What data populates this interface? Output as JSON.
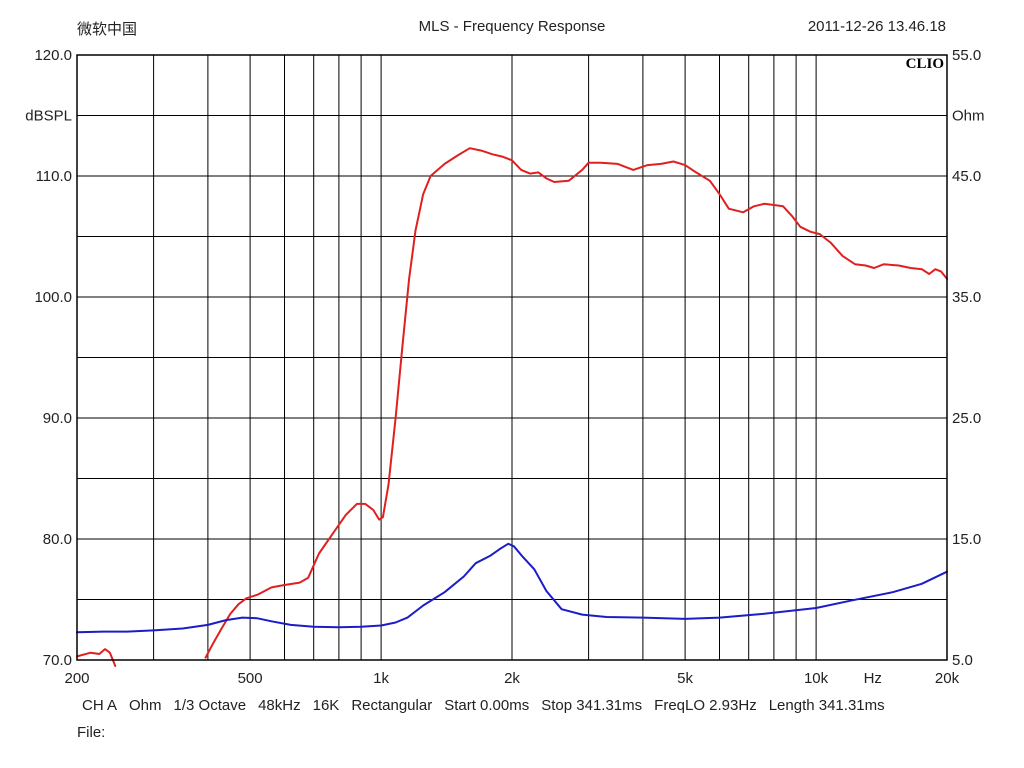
{
  "header": {
    "left": "微软中国",
    "title": "MLS - Frequency Response",
    "right": "2011-12-26 13.46.18"
  },
  "brand": "CLIO",
  "footer": {
    "items": [
      "CH A",
      "Ohm",
      "1/3 Octave",
      "48kHz",
      "16K",
      "Rectangular",
      "Start 0.00ms",
      "Stop 341.31ms",
      "FreqLO 2.93Hz",
      "Length 341.31ms"
    ],
    "file_label": "File:"
  },
  "chart_data": {
    "type": "line",
    "xscale": "log",
    "xlim": [
      200,
      20000
    ],
    "ylim": [
      70,
      120
    ],
    "y2lim": [
      5,
      55
    ],
    "ylabel": "dBSPL",
    "y2label": "Ohm",
    "xunit": "Hz",
    "grid": true,
    "x_tick_labels": [
      {
        "value": 200,
        "label": "200"
      },
      {
        "value": 500,
        "label": "500"
      },
      {
        "value": 1000,
        "label": "1k"
      },
      {
        "value": 2000,
        "label": "2k"
      },
      {
        "value": 5000,
        "label": "5k"
      },
      {
        "value": 10000,
        "label": "10k"
      },
      {
        "value": 20000,
        "label": "20k"
      }
    ],
    "y_tick_labels": [
      "120.0",
      "110.0",
      "100.0",
      "90.0",
      "80.0",
      "70.0"
    ],
    "y2_tick_labels": [
      "55.0",
      "45.0",
      "35.0",
      "25.0",
      "15.0",
      "5.0"
    ],
    "series": [
      {
        "color": "#e02020",
        "axis": "left",
        "segments": [
          [
            [
              200,
              70.3
            ],
            [
              215,
              70.6
            ],
            [
              225,
              70.5
            ],
            [
              232,
              70.9
            ],
            [
              238,
              70.6
            ],
            [
              245,
              69.5
            ]
          ],
          [
            [
              395,
              70.2
            ],
            [
              410,
              71.3
            ],
            [
              430,
              72.6
            ],
            [
              450,
              73.8
            ],
            [
              470,
              74.6
            ],
            [
              490,
              75.1
            ],
            [
              520,
              75.4
            ],
            [
              560,
              76.0
            ],
            [
              600,
              76.2
            ],
            [
              650,
              76.4
            ],
            [
              680,
              76.8
            ],
            [
              720,
              78.8
            ],
            [
              780,
              80.6
            ],
            [
              830,
              82.0
            ],
            [
              880,
              82.9
            ],
            [
              920,
              82.9
            ],
            [
              960,
              82.4
            ],
            [
              990,
              81.6
            ],
            [
              1010,
              81.8
            ],
            [
              1040,
              84.5
            ],
            [
              1080,
              90.0
            ],
            [
              1120,
              96.0
            ],
            [
              1160,
              101.5
            ],
            [
              1200,
              105.5
            ],
            [
              1250,
              108.5
            ],
            [
              1300,
              110.0
            ],
            [
              1400,
              111.0
            ],
            [
              1500,
              111.7
            ],
            [
              1600,
              112.3
            ],
            [
              1700,
              112.1
            ],
            [
              1800,
              111.8
            ],
            [
              1900,
              111.6
            ],
            [
              2000,
              111.3
            ],
            [
              2100,
              110.5
            ],
            [
              2200,
              110.2
            ],
            [
              2300,
              110.3
            ],
            [
              2400,
              109.8
            ],
            [
              2500,
              109.5
            ],
            [
              2700,
              109.6
            ],
            [
              2900,
              110.5
            ],
            [
              3000,
              111.1
            ],
            [
              3200,
              111.1
            ],
            [
              3500,
              111.0
            ],
            [
              3800,
              110.5
            ],
            [
              4100,
              110.9
            ],
            [
              4400,
              111.0
            ],
            [
              4700,
              111.2
            ],
            [
              5000,
              110.9
            ],
            [
              5300,
              110.3
            ],
            [
              5700,
              109.6
            ],
            [
              6000,
              108.5
            ],
            [
              6300,
              107.3
            ],
            [
              6800,
              107.0
            ],
            [
              7200,
              107.5
            ],
            [
              7600,
              107.7
            ],
            [
              8000,
              107.6
            ],
            [
              8400,
              107.5
            ],
            [
              8800,
              106.7
            ],
            [
              9200,
              105.8
            ],
            [
              9700,
              105.4
            ],
            [
              10200,
              105.2
            ],
            [
              10800,
              104.5
            ],
            [
              11500,
              103.4
            ],
            [
              12300,
              102.7
            ],
            [
              13000,
              102.6
            ],
            [
              13600,
              102.4
            ],
            [
              14300,
              102.7
            ],
            [
              15500,
              102.6
            ],
            [
              16500,
              102.4
            ],
            [
              17500,
              102.3
            ],
            [
              18200,
              101.9
            ],
            [
              18800,
              102.3
            ],
            [
              19400,
              102.1
            ],
            [
              20000,
              101.5
            ]
          ]
        ]
      },
      {
        "color": "#1c1cc8",
        "axis": "right",
        "segments": [
          [
            [
              200,
              7.3
            ],
            [
              230,
              7.35
            ],
            [
              260,
              7.35
            ],
            [
              300,
              7.45
            ],
            [
              350,
              7.6
            ],
            [
              400,
              7.9
            ],
            [
              440,
              8.3
            ],
            [
              480,
              8.5
            ],
            [
              520,
              8.45
            ],
            [
              560,
              8.2
            ],
            [
              620,
              7.9
            ],
            [
              700,
              7.75
            ],
            [
              800,
              7.7
            ],
            [
              900,
              7.75
            ],
            [
              1000,
              7.85
            ],
            [
              1080,
              8.1
            ],
            [
              1150,
              8.5
            ],
            [
              1250,
              9.5
            ],
            [
              1400,
              10.6
            ],
            [
              1550,
              11.9
            ],
            [
              1650,
              13.0
            ],
            [
              1780,
              13.6
            ],
            [
              1880,
              14.2
            ],
            [
              1960,
              14.6
            ],
            [
              2020,
              14.4
            ],
            [
              2120,
              13.5
            ],
            [
              2250,
              12.5
            ],
            [
              2400,
              10.7
            ],
            [
              2600,
              9.2
            ],
            [
              2900,
              8.75
            ],
            [
              3300,
              8.55
            ],
            [
              4000,
              8.5
            ],
            [
              5000,
              8.4
            ],
            [
              6000,
              8.5
            ],
            [
              7500,
              8.8
            ],
            [
              10000,
              9.3
            ],
            [
              12000,
              9.9
            ],
            [
              15000,
              10.6
            ],
            [
              17500,
              11.3
            ],
            [
              20000,
              12.3
            ]
          ]
        ]
      }
    ]
  }
}
